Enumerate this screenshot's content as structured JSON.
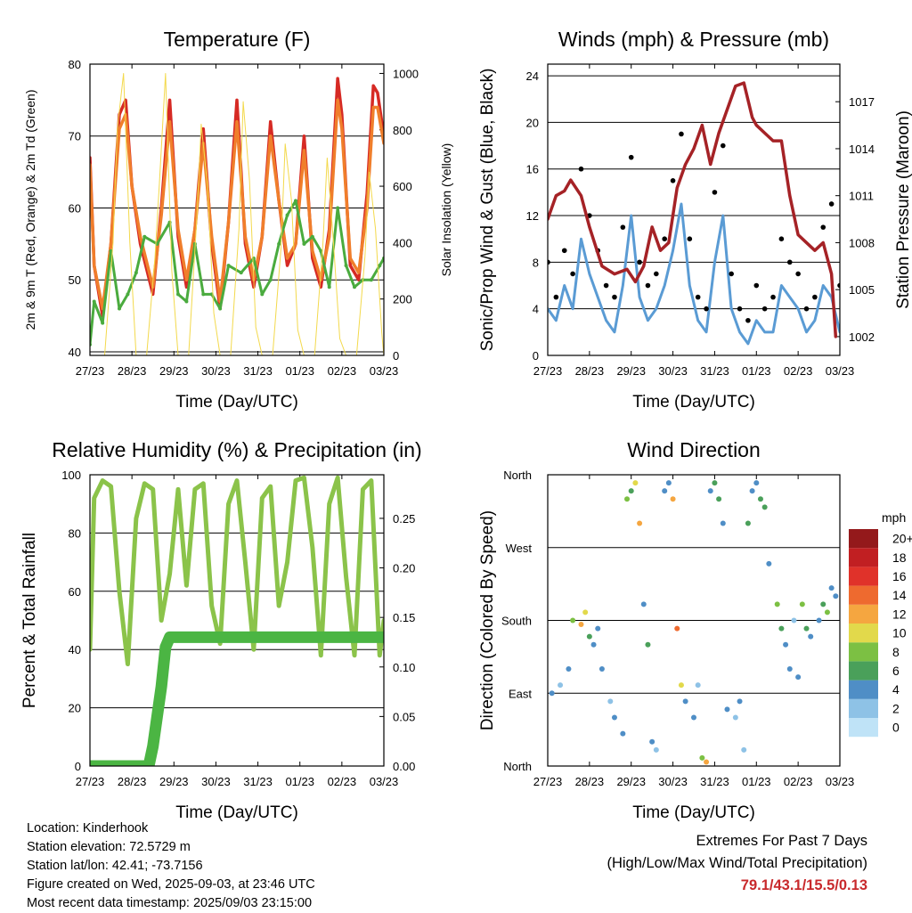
{
  "footer": {
    "location": "Location: Kinderhook",
    "elevation": "Station elevation: 72.5729 m",
    "latlon": "Station lat/lon: 42.41; -73.7156",
    "created": "Figure created on Wed, 2025-09-03, at 23:46 UTC",
    "recent": "Most recent data timestamp: 2025/09/03 23:15:00"
  },
  "extremes": {
    "title": "Extremes For Past 7 Days",
    "subtitle": "(High/Low/Max Wind/Total Precipitation)",
    "values": "79.1/43.1/15.5/0.13"
  },
  "chart_data": [
    {
      "id": "temperature",
      "type": "line",
      "title": "Temperature (F)",
      "xlabel": "Time (Day/UTC)",
      "ylabel": "2m & 9m T (Red, Orange) & 2m Td (Green)",
      "y2label": "Solar Insolation (Yellow)",
      "x_ticks": [
        "27/23",
        "28/23",
        "29/23",
        "30/23",
        "31/23",
        "01/23",
        "02/23",
        "03/23"
      ],
      "ylim": [
        39.5,
        80
      ],
      "y_ticks": [
        40,
        50,
        60,
        70,
        80
      ],
      "y2lim": [
        0,
        1033
      ],
      "y2_ticks": [
        0,
        200,
        400,
        600,
        800,
        1000
      ],
      "grid": true,
      "series": [
        {
          "color": "#d62a24",
          "axis": "left",
          "x": [
            0,
            0.1,
            0.3,
            0.5,
            0.7,
            0.85,
            1.0,
            1.2,
            1.5,
            1.7,
            1.9,
            2.1,
            2.3,
            2.5,
            2.7,
            2.9,
            3.1,
            3.3,
            3.5,
            3.7,
            3.9,
            4.1,
            4.3,
            4.5,
            4.7,
            4.9,
            5.1,
            5.3,
            5.5,
            5.7,
            5.9,
            6.0,
            6.2,
            6.4,
            6.6,
            6.75,
            6.85,
            7.0
          ],
          "y": [
            67,
            52,
            45,
            55,
            73,
            75,
            63,
            55,
            48,
            60,
            75,
            56,
            49,
            57,
            71,
            55,
            46,
            58,
            75,
            55,
            49,
            56,
            72,
            61,
            52,
            55,
            70,
            53,
            49,
            57,
            78,
            73,
            52,
            50,
            62,
            77,
            76,
            70
          ]
        },
        {
          "color": "#f07e2b",
          "axis": "left",
          "x": [
            0,
            0.1,
            0.3,
            0.5,
            0.7,
            0.85,
            1.0,
            1.2,
            1.5,
            1.7,
            1.9,
            2.1,
            2.3,
            2.5,
            2.7,
            2.9,
            3.1,
            3.3,
            3.5,
            3.7,
            3.9,
            4.1,
            4.3,
            4.5,
            4.7,
            4.9,
            5.1,
            5.3,
            5.5,
            5.7,
            5.9,
            6.0,
            6.2,
            6.4,
            6.6,
            6.75,
            6.85,
            7.0
          ],
          "y": [
            66,
            52,
            46,
            55,
            71,
            73,
            63,
            56,
            49,
            59,
            72,
            57,
            50,
            57,
            69,
            56,
            47,
            58,
            72,
            56,
            50,
            56,
            70,
            61,
            53,
            55,
            68,
            54,
            50,
            56,
            75,
            71,
            53,
            51,
            60,
            74,
            74,
            69
          ]
        },
        {
          "color": "#4aab3e",
          "axis": "left",
          "x": [
            0,
            0.1,
            0.3,
            0.5,
            0.7,
            0.9,
            1.1,
            1.3,
            1.6,
            1.9,
            2.1,
            2.3,
            2.5,
            2.7,
            2.9,
            3.1,
            3.3,
            3.6,
            3.9,
            4.1,
            4.3,
            4.5,
            4.7,
            4.9,
            5.1,
            5.3,
            5.5,
            5.7,
            5.9,
            6.1,
            6.3,
            6.5,
            6.7,
            6.9,
            7.0
          ],
          "y": [
            41,
            47,
            44,
            54,
            46,
            48,
            51,
            56,
            55,
            58,
            48,
            47,
            55,
            48,
            48,
            46,
            52,
            51,
            53,
            48,
            50,
            55,
            59,
            61,
            55,
            56,
            54,
            49,
            60,
            52,
            49,
            50,
            50,
            52,
            53
          ]
        },
        {
          "color": "#f3d94c",
          "axis": "right",
          "x": [
            0,
            0.1,
            0.35,
            0.55,
            0.65,
            0.8,
            0.95,
            1.1,
            1.35,
            1.55,
            1.65,
            1.8,
            1.95,
            2.1,
            2.35,
            2.55,
            2.65,
            2.8,
            2.95,
            3.1,
            3.35,
            3.55,
            3.65,
            3.8,
            3.95,
            4.1,
            4.35,
            4.55,
            4.65,
            4.8,
            4.95,
            5.1,
            5.35,
            5.55,
            5.65,
            5.8,
            5.95,
            6.1,
            6.35,
            6.55,
            6.65,
            6.8,
            6.95,
            7.0
          ],
          "y": [
            0,
            0,
            0,
            400,
            800,
            1000,
            400,
            0,
            0,
            350,
            600,
            1000,
            300,
            0,
            0,
            500,
            820,
            600,
            150,
            0,
            0,
            450,
            900,
            620,
            100,
            0,
            0,
            380,
            750,
            550,
            90,
            0,
            0,
            400,
            700,
            400,
            60,
            0,
            0,
            350,
            650,
            450,
            80,
            0
          ]
        }
      ]
    },
    {
      "id": "winds",
      "type": "line",
      "title": "Winds (mph) & Pressure (mb)",
      "xlabel": "Time (Day/UTC)",
      "ylabel": "Sonic/Prop Wind & Gust (Blue, Black)",
      "y2label": "Station Pressure (Maroon)",
      "x_ticks": [
        "27/23",
        "28/23",
        "29/23",
        "30/23",
        "31/23",
        "01/23",
        "02/23",
        "03/23"
      ],
      "ylim": [
        0,
        25
      ],
      "y_ticks": [
        0,
        4,
        8,
        12,
        16,
        20,
        24
      ],
      "y2lim": [
        1000.8,
        1019.4
      ],
      "y2_ticks": [
        1002,
        1005,
        1008,
        1011,
        1014,
        1017
      ],
      "grid": true,
      "series": [
        {
          "color": "#5a9bd4",
          "axis": "left",
          "x": [
            0,
            0.2,
            0.4,
            0.6,
            0.8,
            1.0,
            1.2,
            1.4,
            1.6,
            1.8,
            2.0,
            2.2,
            2.4,
            2.6,
            2.8,
            3.0,
            3.2,
            3.4,
            3.6,
            3.8,
            4.0,
            4.2,
            4.4,
            4.6,
            4.8,
            5.0,
            5.2,
            5.4,
            5.6,
            5.8,
            6.0,
            6.2,
            6.4,
            6.6,
            6.8,
            7.0
          ],
          "y": [
            4,
            3,
            6,
            4,
            10,
            7,
            5,
            3,
            2,
            6,
            12,
            5,
            3,
            4,
            6,
            9,
            13,
            6,
            3,
            2,
            8,
            12,
            4,
            2,
            1,
            3,
            2,
            2,
            6,
            5,
            4,
            2,
            3,
            6,
            5,
            2
          ]
        },
        {
          "color": "#000000",
          "axis": "left",
          "x": [
            0,
            0.2,
            0.4,
            0.6,
            0.8,
            1.0,
            1.2,
            1.4,
            1.6,
            1.8,
            2.0,
            2.2,
            2.4,
            2.6,
            2.8,
            3.0,
            3.2,
            3.4,
            3.6,
            3.8,
            4.0,
            4.2,
            4.4,
            4.6,
            4.8,
            5.0,
            5.2,
            5.4,
            5.6,
            5.8,
            6.0,
            6.2,
            6.4,
            6.6,
            6.8,
            7.0
          ],
          "y": [
            8,
            5,
            9,
            7,
            16,
            12,
            9,
            6,
            5,
            11,
            17,
            8,
            6,
            7,
            10,
            15,
            19,
            10,
            5,
            4,
            14,
            18,
            7,
            4,
            3,
            6,
            4,
            5,
            10,
            8,
            7,
            4,
            5,
            11,
            13,
            6
          ]
        },
        {
          "color": "#a52226",
          "axis": "right",
          "x": [
            0,
            0.2,
            0.4,
            0.55,
            0.8,
            1.0,
            1.3,
            1.6,
            1.9,
            2.1,
            2.3,
            2.5,
            2.7,
            2.9,
            3.1,
            3.3,
            3.5,
            3.7,
            3.9,
            4.1,
            4.3,
            4.5,
            4.7,
            4.9,
            5.0,
            5.2,
            5.4,
            5.6,
            5.8,
            6.0,
            6.2,
            6.4,
            6.6,
            6.8,
            6.9
          ],
          "y": [
            1009.5,
            1011,
            1011.3,
            1012,
            1011,
            1009,
            1006.5,
            1006,
            1006.3,
            1005.5,
            1006.5,
            1009,
            1007.5,
            1008,
            1011.5,
            1013,
            1014,
            1015.5,
            1013,
            1015,
            1016.5,
            1018,
            1018.2,
            1016,
            1015.5,
            1015,
            1014.5,
            1014.5,
            1011,
            1008.5,
            1008,
            1007.5,
            1008,
            1006,
            1002
          ]
        }
      ]
    },
    {
      "id": "humidity",
      "type": "line",
      "title": "Relative Humidity (%) & Precipitation (in)",
      "xlabel": "Time (Day/UTC)",
      "ylabel": "Percent & Total Rainfall",
      "x_ticks": [
        "27/23",
        "28/23",
        "29/23",
        "30/23",
        "31/23",
        "01/23",
        "02/23",
        "03/23"
      ],
      "ylim": [
        0,
        100
      ],
      "y_ticks": [
        0,
        20,
        40,
        60,
        80,
        100
      ],
      "y2lim": [
        0,
        0.294
      ],
      "y2_ticks": [
        "0.00",
        "0.05",
        "0.10",
        "0.15",
        "0.20",
        "0.25"
      ],
      "grid": true,
      "series": [
        {
          "color": "#8bc34a",
          "axis": "left",
          "x": [
            0,
            0.1,
            0.3,
            0.5,
            0.7,
            0.9,
            1.1,
            1.3,
            1.5,
            1.7,
            1.9,
            2.1,
            2.3,
            2.5,
            2.7,
            2.9,
            3.1,
            3.3,
            3.5,
            3.7,
            3.9,
            4.1,
            4.3,
            4.5,
            4.7,
            4.9,
            5.1,
            5.3,
            5.5,
            5.7,
            5.9,
            6.1,
            6.3,
            6.5,
            6.7,
            6.9,
            7.0
          ],
          "y": [
            40,
            92,
            98,
            96,
            60,
            35,
            85,
            97,
            95,
            50,
            66,
            95,
            62,
            95,
            97,
            55,
            42,
            90,
            98,
            70,
            40,
            92,
            96,
            55,
            70,
            98,
            99,
            75,
            38,
            90,
            99,
            65,
            38,
            95,
            98,
            38,
            50
          ]
        },
        {
          "color": "#4bb543",
          "axis": "right",
          "x": [
            0,
            0.5,
            1.0,
            1.4,
            1.5,
            1.6,
            1.7,
            1.8,
            1.9,
            2.0,
            3.0,
            4.0,
            5.0,
            6.0,
            7.0
          ],
          "y": [
            0,
            0,
            0,
            0,
            0.02,
            0.05,
            0.08,
            0.12,
            0.13,
            0.13,
            0.13,
            0.13,
            0.13,
            0.13,
            0.13
          ]
        }
      ]
    },
    {
      "id": "wind-direction",
      "type": "scatter",
      "title": "Wind Direction",
      "xlabel": "Time (Day/UTC)",
      "ylabel": "Direction (Colored By Speed)",
      "x_ticks": [
        "27/23",
        "28/23",
        "29/23",
        "30/23",
        "31/23",
        "01/23",
        "02/23",
        "03/23"
      ],
      "y_ticks": [
        "North",
        "East",
        "South",
        "West",
        "North"
      ],
      "ylim": [
        0,
        360
      ],
      "grid": true,
      "legend": {
        "title": "mph",
        "labels": [
          "0",
          "2",
          "4",
          "6",
          "8",
          "10",
          "12",
          "14",
          "16",
          "18",
          "20+"
        ],
        "colors": [
          "#bfe3f7",
          "#8ec2e6",
          "#4f8ec6",
          "#4aa05a",
          "#7cc043",
          "#e2d94b",
          "#f5a640",
          "#ee6a2f",
          "#e0322a",
          "#c11f22",
          "#94191b"
        ]
      },
      "points": {
        "x": [
          0.1,
          0.3,
          0.5,
          0.6,
          0.8,
          0.9,
          1.0,
          1.1,
          1.2,
          1.3,
          1.5,
          1.6,
          1.8,
          1.9,
          2.0,
          2.1,
          2.2,
          2.3,
          2.4,
          2.5,
          2.6,
          2.8,
          2.9,
          3.0,
          3.1,
          3.2,
          3.3,
          3.5,
          3.6,
          3.7,
          3.8,
          3.9,
          4.0,
          4.1,
          4.2,
          4.3,
          4.5,
          4.6,
          4.7,
          4.8,
          4.9,
          5.0,
          5.1,
          5.2,
          5.3,
          5.5,
          5.6,
          5.7,
          5.8,
          5.9,
          6.0,
          6.1,
          6.2,
          6.3,
          6.5,
          6.6,
          6.7,
          6.8,
          6.9
        ],
        "y": [
          90,
          100,
          120,
          180,
          175,
          190,
          160,
          150,
          170,
          120,
          80,
          60,
          40,
          330,
          340,
          350,
          300,
          200,
          150,
          30,
          20,
          340,
          350,
          330,
          170,
          100,
          80,
          60,
          100,
          10,
          5,
          340,
          350,
          330,
          300,
          70,
          60,
          80,
          20,
          300,
          340,
          350,
          330,
          320,
          250,
          200,
          170,
          150,
          120,
          180,
          110,
          200,
          170,
          160,
          180,
          200,
          190,
          220,
          210
        ],
        "speed": [
          3,
          2,
          4,
          8,
          12,
          10,
          6,
          4,
          3,
          4,
          2,
          3,
          4,
          8,
          6,
          10,
          12,
          4,
          6,
          4,
          2,
          3,
          4,
          12,
          14,
          10,
          4,
          3,
          2,
          8,
          12,
          4,
          5,
          6,
          3,
          4,
          2,
          3,
          2,
          5,
          4,
          3,
          5,
          6,
          4,
          8,
          6,
          4,
          3,
          2,
          4,
          8,
          6,
          4,
          3,
          6,
          8,
          4,
          3
        ]
      }
    }
  ]
}
